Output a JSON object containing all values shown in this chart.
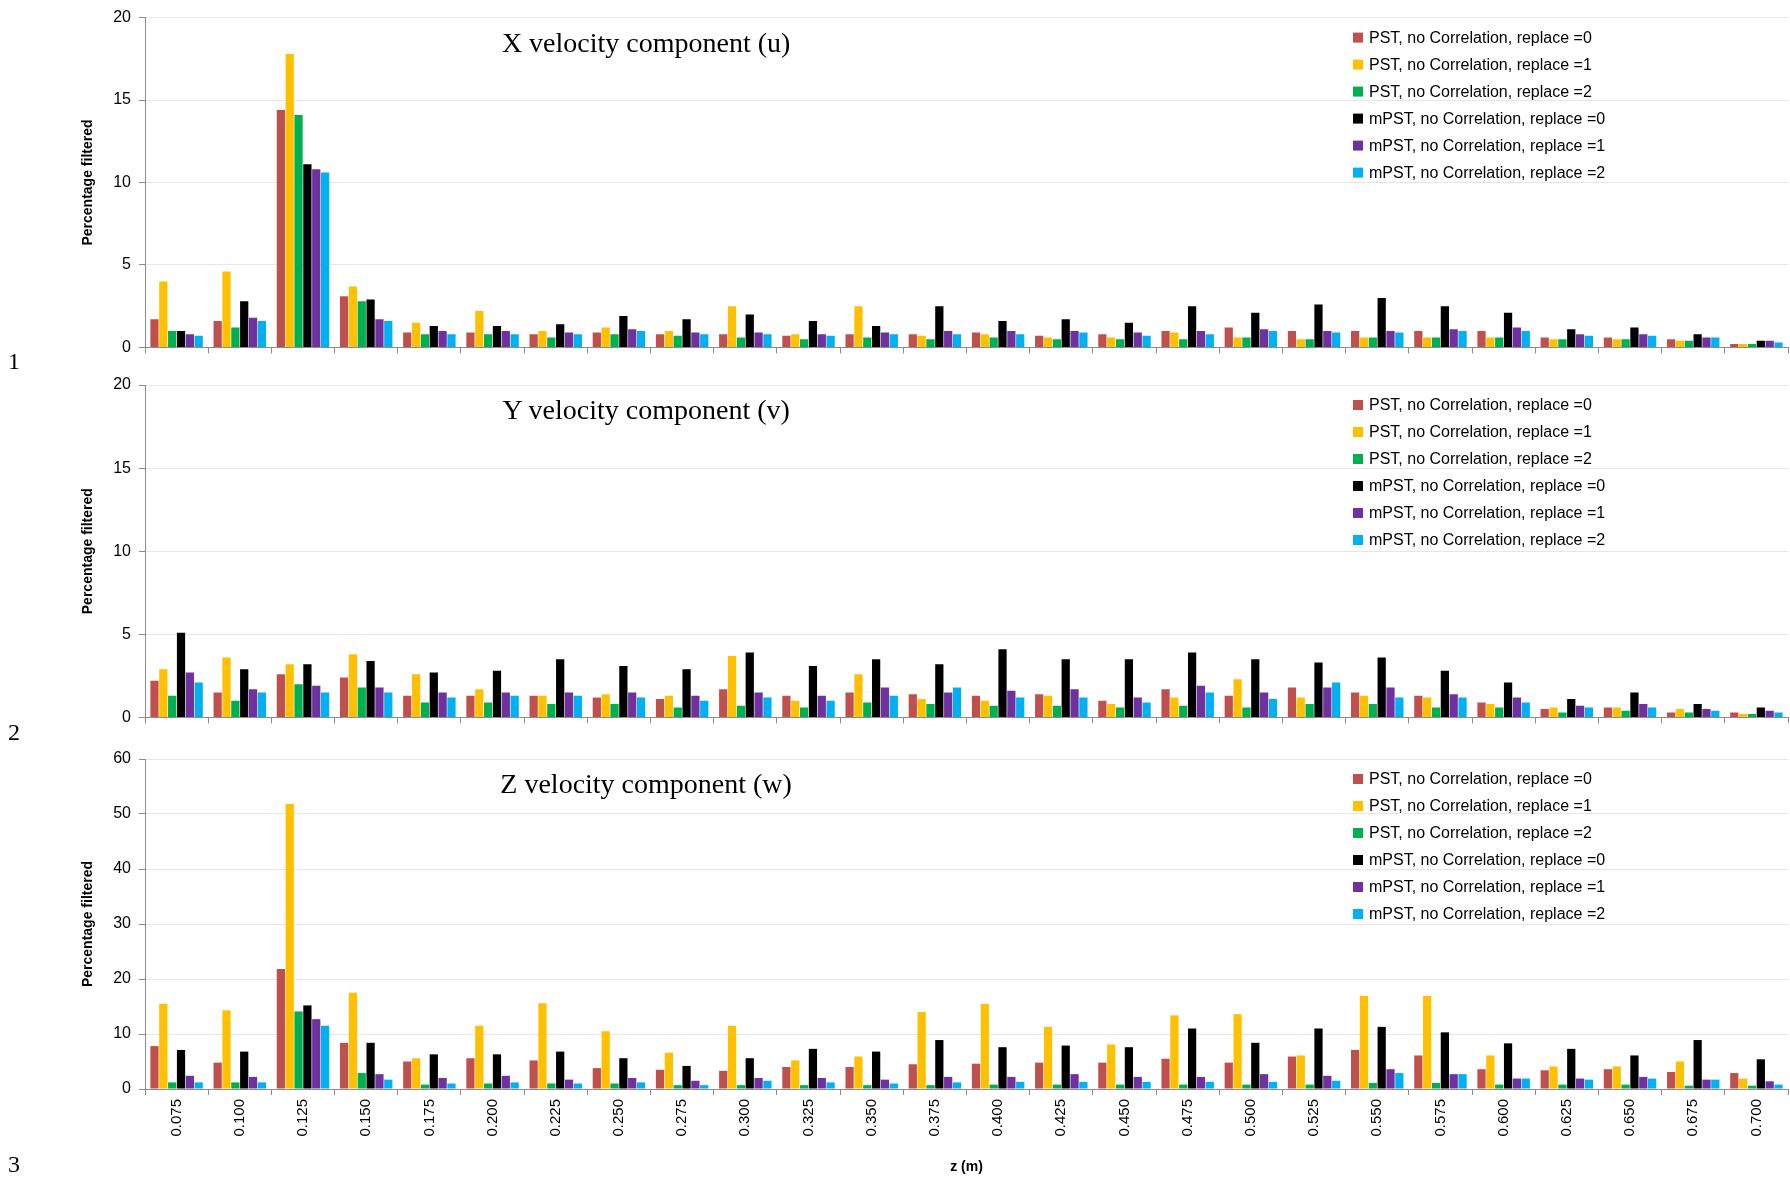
{
  "chart_data": [
    {
      "type": "bar",
      "title": "X velocity component (u)",
      "ylabel": "Percentage filtered",
      "categories": [
        "0.075",
        "0.100",
        "0.125",
        "0.150",
        "0.175",
        "0.200",
        "0.225",
        "0.250",
        "0.275",
        "0.300",
        "0.325",
        "0.350",
        "0.375",
        "0.400",
        "0.425",
        "0.450",
        "0.475",
        "0.500",
        "0.525",
        "0.550",
        "0.575",
        "0.600",
        "0.625",
        "0.650",
        "0.675",
        "0.700"
      ],
      "series": [
        {
          "name": "PST, no Correlation, replace =0",
          "color": "#c0504d",
          "values": [
            1.7,
            1.6,
            14.4,
            3.1,
            0.9,
            0.9,
            0.8,
            0.9,
            0.8,
            0.8,
            0.7,
            0.8,
            0.8,
            0.9,
            0.7,
            0.8,
            1.0,
            1.2,
            1.0,
            1.0,
            1.0,
            1.0,
            0.6,
            0.6,
            0.5,
            0.2
          ]
        },
        {
          "name": "PST, no Correlation, replace =1",
          "color": "#ffc000",
          "values": [
            4.0,
            4.6,
            17.8,
            3.7,
            1.5,
            2.2,
            1.0,
            1.2,
            1.0,
            2.5,
            0.8,
            2.5,
            0.7,
            0.8,
            0.6,
            0.6,
            0.9,
            0.6,
            0.5,
            0.6,
            0.6,
            0.6,
            0.5,
            0.5,
            0.4,
            0.2
          ]
        },
        {
          "name": "PST, no Correlation, replace =2",
          "color": "#00b050",
          "values": [
            1.0,
            1.2,
            14.1,
            2.8,
            0.8,
            0.8,
            0.6,
            0.8,
            0.7,
            0.6,
            0.5,
            0.6,
            0.5,
            0.6,
            0.5,
            0.5,
            0.5,
            0.6,
            0.5,
            0.6,
            0.6,
            0.6,
            0.5,
            0.5,
            0.4,
            0.2
          ]
        },
        {
          "name": "mPST, no Correlation, replace =0",
          "color": "#000000",
          "values": [
            1.0,
            2.8,
            11.1,
            2.9,
            1.3,
            1.3,
            1.4,
            1.9,
            1.7,
            2.0,
            1.6,
            1.3,
            2.5,
            1.6,
            1.7,
            1.5,
            2.5,
            2.1,
            2.6,
            3.0,
            2.5,
            2.1,
            1.1,
            1.2,
            0.8,
            0.4
          ]
        },
        {
          "name": "mPST, no Correlation, replace =1",
          "color": "#7030a0",
          "values": [
            0.8,
            1.8,
            10.8,
            1.7,
            1.0,
            1.0,
            0.9,
            1.1,
            0.9,
            0.9,
            0.8,
            0.9,
            1.0,
            1.0,
            1.0,
            0.9,
            1.0,
            1.1,
            1.0,
            1.0,
            1.1,
            1.2,
            0.8,
            0.8,
            0.6,
            0.4
          ]
        },
        {
          "name": "mPST, no Correlation, replace =2",
          "color": "#00b0f0",
          "values": [
            0.7,
            1.6,
            10.6,
            1.6,
            0.8,
            0.8,
            0.8,
            1.0,
            0.8,
            0.8,
            0.7,
            0.8,
            0.8,
            0.8,
            0.9,
            0.7,
            0.8,
            1.0,
            0.9,
            0.9,
            1.0,
            1.0,
            0.7,
            0.7,
            0.6,
            0.3
          ]
        }
      ],
      "ylim": [
        0,
        20
      ],
      "yticks": [
        0,
        5,
        10,
        15,
        20
      ],
      "grid": "y",
      "legend": "top right",
      "tick_labels": "y",
      "annotations": [
        "1"
      ]
    },
    {
      "type": "bar",
      "title": "Y velocity component (v)",
      "ylabel": "Percentage filtered",
      "categories": [
        "0.075",
        "0.100",
        "0.125",
        "0.150",
        "0.175",
        "0.200",
        "0.225",
        "0.250",
        "0.275",
        "0.300",
        "0.325",
        "0.350",
        "0.375",
        "0.400",
        "0.425",
        "0.450",
        "0.475",
        "0.500",
        "0.525",
        "0.550",
        "0.575",
        "0.600",
        "0.625",
        "0.650",
        "0.675",
        "0.700"
      ],
      "series": [
        {
          "name": "PST, no Correlation, replace =0",
          "color": "#c0504d",
          "values": [
            2.2,
            1.5,
            2.6,
            2.4,
            1.3,
            1.3,
            1.3,
            1.2,
            1.1,
            1.7,
            1.3,
            1.5,
            1.4,
            1.3,
            1.4,
            1.0,
            1.7,
            1.3,
            1.8,
            1.5,
            1.3,
            0.9,
            0.5,
            0.6,
            0.3,
            0.3
          ]
        },
        {
          "name": "PST, no Correlation, replace =1",
          "color": "#ffc000",
          "values": [
            2.9,
            3.6,
            3.2,
            3.8,
            2.6,
            1.7,
            1.3,
            1.4,
            1.3,
            3.7,
            1.0,
            2.6,
            1.1,
            1.0,
            1.3,
            0.8,
            1.2,
            2.3,
            1.2,
            1.3,
            1.2,
            0.8,
            0.6,
            0.6,
            0.5,
            0.2
          ]
        },
        {
          "name": "PST, no Correlation, replace =2",
          "color": "#00b050",
          "values": [
            1.3,
            1.0,
            2.0,
            1.8,
            0.9,
            0.9,
            0.8,
            0.8,
            0.6,
            0.7,
            0.6,
            0.9,
            0.8,
            0.7,
            0.7,
            0.6,
            0.7,
            0.6,
            0.8,
            0.8,
            0.6,
            0.6,
            0.3,
            0.4,
            0.3,
            0.2
          ]
        },
        {
          "name": "mPST, no Correlation, replace =0",
          "color": "#000000",
          "values": [
            5.1,
            2.9,
            3.2,
            3.4,
            2.7,
            2.8,
            3.5,
            3.1,
            2.9,
            3.9,
            3.1,
            3.5,
            3.2,
            4.1,
            3.5,
            3.5,
            3.9,
            3.5,
            3.3,
            3.6,
            2.8,
            2.1,
            1.1,
            1.5,
            0.8,
            0.6
          ]
        },
        {
          "name": "mPST, no Correlation, replace =1",
          "color": "#7030a0",
          "values": [
            2.7,
            1.7,
            1.9,
            1.8,
            1.5,
            1.5,
            1.5,
            1.5,
            1.3,
            1.5,
            1.3,
            1.8,
            1.5,
            1.6,
            1.7,
            1.2,
            1.9,
            1.5,
            1.8,
            1.8,
            1.4,
            1.2,
            0.7,
            0.8,
            0.5,
            0.4
          ]
        },
        {
          "name": "mPST, no Correlation, replace =2",
          "color": "#00b0f0",
          "values": [
            2.1,
            1.5,
            1.5,
            1.5,
            1.2,
            1.3,
            1.3,
            1.2,
            1.0,
            1.2,
            1.0,
            1.3,
            1.8,
            1.2,
            1.2,
            0.9,
            1.5,
            1.1,
            2.1,
            1.2,
            1.2,
            0.9,
            0.6,
            0.6,
            0.4,
            0.3
          ]
        }
      ],
      "ylim": [
        0,
        20
      ],
      "yticks": [
        0,
        5,
        10,
        15,
        20
      ],
      "grid": "y",
      "legend": "top right",
      "tick_labels": "y",
      "annotations": [
        "2"
      ]
    },
    {
      "type": "bar",
      "title": "Z velocity component (w)",
      "xlabel": "z (m)",
      "ylabel": "Percentage filtered",
      "categories": [
        "0.075",
        "0.100",
        "0.125",
        "0.150",
        "0.175",
        "0.200",
        "0.225",
        "0.250",
        "0.275",
        "0.300",
        "0.325",
        "0.350",
        "0.375",
        "0.400",
        "0.425",
        "0.450",
        "0.475",
        "0.500",
        "0.525",
        "0.550",
        "0.575",
        "0.600",
        "0.625",
        "0.650",
        "0.675",
        "0.700"
      ],
      "series": [
        {
          "name": "PST, no Correlation, replace =0",
          "color": "#c0504d",
          "values": [
            7.8,
            4.8,
            21.8,
            8.4,
            5.0,
            5.6,
            5.2,
            3.8,
            3.5,
            3.3,
            4.0,
            4.0,
            4.5,
            4.6,
            4.8,
            4.8,
            5.5,
            4.8,
            5.9,
            7.1,
            6.1,
            3.6,
            3.4,
            3.6,
            3.1,
            2.9
          ]
        },
        {
          "name": "PST, no Correlation, replace =1",
          "color": "#ffc000",
          "values": [
            15.5,
            14.3,
            51.8,
            17.5,
            5.6,
            11.5,
            15.6,
            10.5,
            6.6,
            11.5,
            5.2,
            5.9,
            14.0,
            15.5,
            11.3,
            8.1,
            13.4,
            13.6,
            6.1,
            16.9,
            16.9,
            6.1,
            4.1,
            4.1,
            5.0,
            1.9
          ]
        },
        {
          "name": "PST, no Correlation, replace =2",
          "color": "#00b050",
          "values": [
            1.2,
            1.2,
            14.1,
            2.9,
            0.8,
            1.0,
            1.0,
            1.0,
            0.7,
            0.7,
            0.7,
            0.7,
            0.7,
            0.8,
            0.8,
            0.8,
            0.8,
            0.8,
            0.8,
            1.1,
            1.1,
            0.8,
            0.8,
            0.8,
            0.6,
            0.6
          ]
        },
        {
          "name": "mPST, no Correlation, replace =0",
          "color": "#000000",
          "values": [
            7.1,
            6.8,
            15.2,
            8.4,
            6.3,
            6.3,
            6.8,
            5.6,
            4.2,
            5.6,
            7.3,
            6.8,
            8.9,
            7.6,
            7.9,
            7.6,
            11.0,
            8.4,
            11.0,
            11.3,
            10.3,
            8.3,
            7.3,
            6.1,
            8.9,
            5.4
          ]
        },
        {
          "name": "mPST, no Correlation, replace =1",
          "color": "#7030a0",
          "values": [
            2.4,
            2.2,
            12.7,
            2.7,
            2.0,
            2.4,
            1.7,
            2.0,
            1.5,
            2.0,
            2.0,
            1.7,
            2.2,
            2.2,
            2.7,
            2.2,
            2.2,
            2.7,
            2.4,
            3.6,
            2.7,
            1.9,
            1.9,
            2.2,
            1.7,
            1.4
          ]
        },
        {
          "name": "mPST, no Correlation, replace =2",
          "color": "#00b0f0",
          "values": [
            1.2,
            1.2,
            11.5,
            1.7,
            1.0,
            1.2,
            1.0,
            1.2,
            0.7,
            1.5,
            1.2,
            1.0,
            1.2,
            1.3,
            1.3,
            1.3,
            1.3,
            1.3,
            1.5,
            2.9,
            2.7,
            1.9,
            1.7,
            1.9,
            1.7,
            0.8
          ]
        }
      ],
      "ylim": [
        0,
        60
      ],
      "yticks": [
        0,
        10,
        20,
        30,
        40,
        50,
        60
      ],
      "grid": "y",
      "legend": "top right",
      "annotations": [
        "3"
      ]
    }
  ]
}
